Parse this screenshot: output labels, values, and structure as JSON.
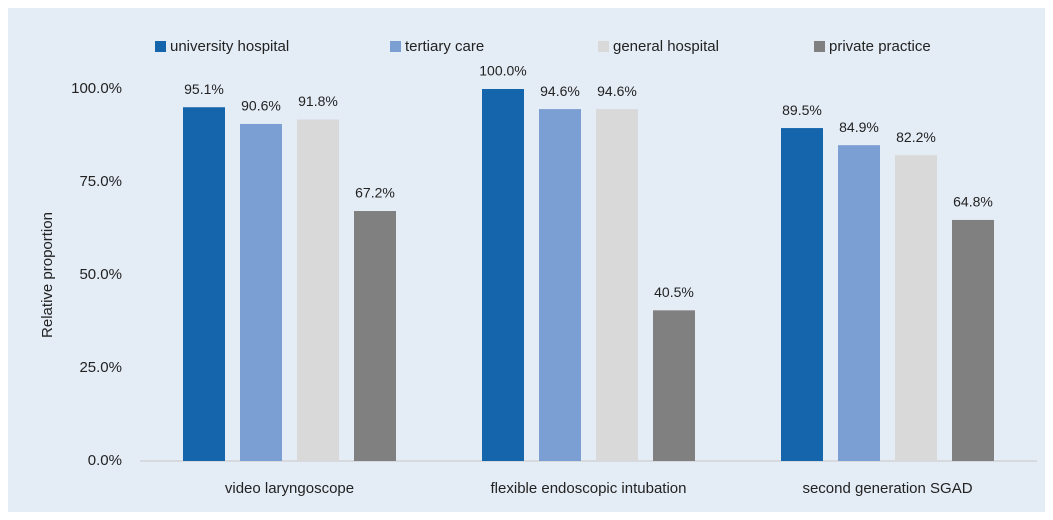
{
  "chart_data": {
    "type": "bar",
    "categories": [
      "video laryngoscope",
      "flexible endoscopic intubation",
      "second generation SGAD"
    ],
    "series": [
      {
        "name": "university hospital",
        "color": "#1565ac",
        "values": [
          95.1,
          100.0,
          89.5
        ],
        "value_labels": [
          "95.1%",
          "100.0%",
          "89.5%"
        ]
      },
      {
        "name": "tertiary care",
        "color": "#7b9fd3",
        "values": [
          90.6,
          94.6,
          84.9
        ],
        "value_labels": [
          "90.6%",
          "94.6%",
          "84.9%"
        ]
      },
      {
        "name": "general hospital",
        "color": "#d9d9d9",
        "values": [
          91.8,
          94.6,
          82.2
        ],
        "value_labels": [
          "91.8%",
          "94.6%",
          "82.2%"
        ]
      },
      {
        "name": "private practice",
        "color": "#808080",
        "values": [
          67.2,
          40.5,
          64.8
        ],
        "value_labels": [
          "67.2%",
          "40.5%",
          "64.8%"
        ]
      }
    ],
    "ylabel": "Relative proportion",
    "ylim": [
      0,
      100
    ],
    "yticks": [
      {
        "value": 0,
        "label": "0.0%"
      },
      {
        "value": 25,
        "label": "25.0%"
      },
      {
        "value": 50,
        "label": "50.0%"
      },
      {
        "value": 75,
        "label": "75.0%"
      },
      {
        "value": 100,
        "label": "100.0%"
      }
    ],
    "grid": false,
    "legend": "top"
  }
}
